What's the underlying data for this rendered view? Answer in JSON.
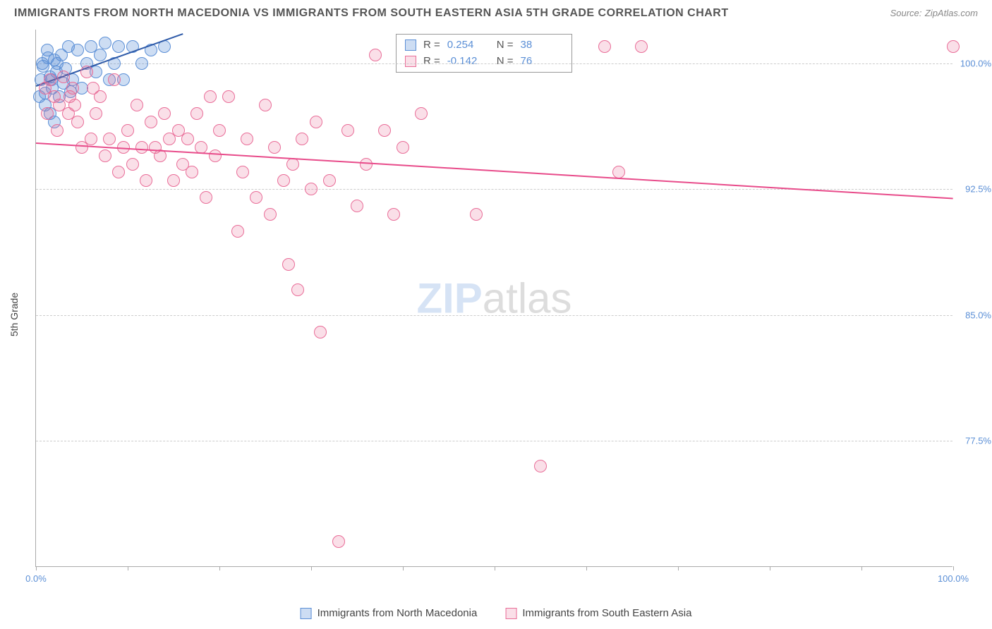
{
  "title": "IMMIGRANTS FROM NORTH MACEDONIA VS IMMIGRANTS FROM SOUTH EASTERN ASIA 5TH GRADE CORRELATION CHART",
  "source_label": "Source:",
  "source_name": "ZipAtlas.com",
  "ylabel": "5th Grade",
  "watermark_a": "ZIP",
  "watermark_b": "atlas",
  "chart": {
    "type": "scatter",
    "xlim": [
      0,
      100
    ],
    "ylim": [
      70,
      102
    ],
    "x_ticks": [
      0,
      10,
      20,
      30,
      40,
      50,
      60,
      70,
      80,
      90,
      100
    ],
    "x_tick_labels": {
      "0": "0.0%",
      "100": "100.0%"
    },
    "y_ticks": [
      77.5,
      85.0,
      92.5,
      100.0
    ],
    "y_tick_labels": [
      "77.5%",
      "85.0%",
      "92.5%",
      "100.0%"
    ],
    "background_color": "#ffffff",
    "grid_color": "#cccccc",
    "axis_color": "#aaaaaa",
    "tick_label_color": "#5b8fd6",
    "marker_radius": 9,
    "series": [
      {
        "name": "Immigrants from North Macedonia",
        "fill": "rgba(91,143,214,0.30)",
        "stroke": "#5b8fd6",
        "R": "0.254",
        "N": "38",
        "trend": {
          "x1": 0,
          "y1": 98.7,
          "x2": 16,
          "y2": 101.8,
          "color": "#2e5aa8",
          "width": 2
        },
        "points": [
          [
            0.5,
            99.0
          ],
          [
            0.8,
            99.8
          ],
          [
            1.0,
            98.2
          ],
          [
            1.2,
            100.8
          ],
          [
            1.5,
            99.2
          ],
          [
            1.8,
            98.5
          ],
          [
            2.0,
            100.2
          ],
          [
            2.2,
            99.5
          ],
          [
            2.5,
            98.0
          ],
          [
            2.8,
            100.5
          ],
          [
            3.0,
            98.8
          ],
          [
            3.2,
            99.7
          ],
          [
            3.5,
            101.0
          ],
          [
            3.8,
            98.3
          ],
          [
            4.0,
            99.0
          ],
          [
            4.5,
            100.8
          ],
          [
            5.0,
            98.5
          ],
          [
            5.5,
            100.0
          ],
          [
            6.0,
            101.0
          ],
          [
            6.5,
            99.5
          ],
          [
            7.0,
            100.5
          ],
          [
            7.5,
            101.2
          ],
          [
            8.0,
            99.0
          ],
          [
            8.5,
            100.0
          ],
          [
            9.0,
            101.0
          ],
          [
            9.5,
            99.0
          ],
          [
            10.5,
            101.0
          ],
          [
            11.5,
            100.0
          ],
          [
            12.5,
            100.8
          ],
          [
            14.0,
            101.0
          ],
          [
            1.0,
            97.5
          ],
          [
            1.5,
            97.0
          ],
          [
            2.0,
            96.5
          ],
          [
            0.7,
            100.0
          ],
          [
            1.3,
            100.3
          ],
          [
            2.3,
            100.0
          ],
          [
            0.4,
            98.0
          ],
          [
            1.7,
            99.0
          ]
        ]
      },
      {
        "name": "Immigrants from South Eastern Asia",
        "fill": "rgba(233,109,152,0.22)",
        "stroke": "#e96d98",
        "R": "-0.142",
        "N": "76",
        "trend": {
          "x1": 0,
          "y1": 95.3,
          "x2": 100,
          "y2": 92.0,
          "color": "#e84b8a",
          "width": 2
        },
        "points": [
          [
            1.0,
            98.5
          ],
          [
            1.5,
            99.0
          ],
          [
            2.0,
            98.0
          ],
          [
            2.5,
            97.5
          ],
          [
            3.0,
            99.2
          ],
          [
            3.5,
            97.0
          ],
          [
            4.0,
            98.5
          ],
          [
            4.5,
            96.5
          ],
          [
            5.0,
            95.0
          ],
          [
            5.5,
            99.5
          ],
          [
            6.0,
            95.5
          ],
          [
            6.5,
            97.0
          ],
          [
            7.0,
            98.0
          ],
          [
            7.5,
            94.5
          ],
          [
            8.0,
            95.5
          ],
          [
            8.5,
            99.0
          ],
          [
            9.0,
            93.5
          ],
          [
            9.5,
            95.0
          ],
          [
            10.0,
            96.0
          ],
          [
            10.5,
            94.0
          ],
          [
            11.0,
            97.5
          ],
          [
            11.5,
            95.0
          ],
          [
            12.0,
            93.0
          ],
          [
            12.5,
            96.5
          ],
          [
            13.0,
            95.0
          ],
          [
            13.5,
            94.5
          ],
          [
            14.0,
            97.0
          ],
          [
            14.5,
            95.5
          ],
          [
            15.0,
            93.0
          ],
          [
            15.5,
            96.0
          ],
          [
            16.0,
            94.0
          ],
          [
            16.5,
            95.5
          ],
          [
            17.0,
            93.5
          ],
          [
            17.5,
            97.0
          ],
          [
            18.0,
            95.0
          ],
          [
            18.5,
            92.0
          ],
          [
            19.0,
            98.0
          ],
          [
            19.5,
            94.5
          ],
          [
            20.0,
            96.0
          ],
          [
            21.0,
            98.0
          ],
          [
            22.0,
            90.0
          ],
          [
            22.5,
            93.5
          ],
          [
            23.0,
            95.5
          ],
          [
            24.0,
            92.0
          ],
          [
            25.0,
            97.5
          ],
          [
            25.5,
            91.0
          ],
          [
            26.0,
            95.0
          ],
          [
            27.0,
            93.0
          ],
          [
            27.5,
            88.0
          ],
          [
            28.0,
            94.0
          ],
          [
            28.5,
            86.5
          ],
          [
            29.0,
            95.5
          ],
          [
            30.0,
            92.5
          ],
          [
            30.5,
            96.5
          ],
          [
            31.0,
            84.0
          ],
          [
            32.0,
            93.0
          ],
          [
            33.0,
            71.5
          ],
          [
            34.0,
            96.0
          ],
          [
            35.0,
            91.5
          ],
          [
            36.0,
            94.0
          ],
          [
            37.0,
            100.5
          ],
          [
            38.0,
            96.0
          ],
          [
            39.0,
            91.0
          ],
          [
            40.0,
            95.0
          ],
          [
            42.0,
            97.0
          ],
          [
            48.0,
            91.0
          ],
          [
            55.0,
            76.0
          ],
          [
            62.0,
            101.0
          ],
          [
            63.5,
            93.5
          ],
          [
            66.0,
            101.0
          ],
          [
            100.0,
            101.0
          ],
          [
            1.2,
            97.0
          ],
          [
            2.3,
            96.0
          ],
          [
            3.7,
            98.0
          ],
          [
            4.2,
            97.5
          ],
          [
            6.2,
            98.5
          ]
        ]
      }
    ]
  },
  "stats_legend": {
    "r_label": "R  =",
    "n_label": "N  ="
  },
  "bottom_legend_labels": [
    "Immigrants from North Macedonia",
    "Immigrants from South Eastern Asia"
  ]
}
